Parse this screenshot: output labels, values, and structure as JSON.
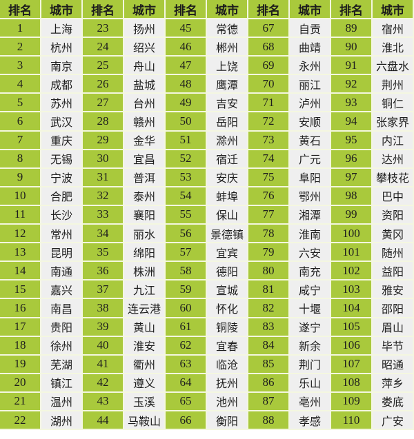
{
  "headers": {
    "rank": "排名",
    "city": "城市"
  },
  "colors": {
    "rank_bg": "#a9c93c",
    "city_bg": "#efefef"
  },
  "cities": [
    "上海",
    "杭州",
    "南京",
    "成都",
    "苏州",
    "武汉",
    "重庆",
    "无锡",
    "宁波",
    "合肥",
    "长沙",
    "常州",
    "昆明",
    "南通",
    "嘉兴",
    "南昌",
    "贵阳",
    "徐州",
    "芜湖",
    "镇江",
    "温州",
    "湖州",
    "扬州",
    "绍兴",
    "舟山",
    "盐城",
    "台州",
    "赣州",
    "金华",
    "宜昌",
    "普洱",
    "泰州",
    "襄阳",
    "丽水",
    "绵阳",
    "株洲",
    "九江",
    "连云港",
    "黄山",
    "淮安",
    "衢州",
    "遵义",
    "玉溪",
    "马鞍山",
    "常德",
    "郴州",
    "上饶",
    "鹰潭",
    "吉安",
    "岳阳",
    "滁州",
    "宿迁",
    "安庆",
    "蚌埠",
    "保山",
    "景德镇",
    "宜宾",
    "德阳",
    "宣城",
    "怀化",
    "铜陵",
    "宜春",
    "临沧",
    "抚州",
    "池州",
    "衡阳",
    "自贡",
    "曲靖",
    "永州",
    "丽江",
    "泸州",
    "安顺",
    "黄石",
    "广元",
    "阜阳",
    "鄂州",
    "湘潭",
    "淮南",
    "六安",
    "南充",
    "咸宁",
    "十堰",
    "遂宁",
    "新余",
    "荆门",
    "乐山",
    "亳州",
    "孝感",
    "宿州",
    "淮北",
    "六盘水",
    "荆州",
    "铜仁",
    "张家界",
    "内江",
    "达州",
    "攀枝花",
    "巴中",
    "资阳",
    "黄冈",
    "随州",
    "益阳",
    "雅安",
    "邵阳",
    "眉山",
    "毕节",
    "昭通",
    "萍乡",
    "娄底",
    "广安"
  ],
  "ranks": [
    1,
    2,
    3,
    4,
    5,
    6,
    7,
    8,
    9,
    10,
    11,
    12,
    13,
    14,
    15,
    16,
    17,
    18,
    19,
    20,
    21,
    22,
    23,
    24,
    25,
    26,
    27,
    28,
    29,
    30,
    31,
    32,
    33,
    34,
    35,
    36,
    37,
    38,
    39,
    40,
    41,
    42,
    43,
    44,
    45,
    46,
    47,
    48,
    49,
    50,
    51,
    52,
    53,
    54,
    55,
    56,
    57,
    58,
    59,
    60,
    61,
    62,
    63,
    64,
    65,
    66,
    67,
    68,
    69,
    70,
    71,
    72,
    73,
    74,
    75,
    76,
    77,
    78,
    79,
    80,
    81,
    82,
    83,
    84,
    85,
    86,
    87,
    88,
    89,
    90,
    91,
    92,
    93,
    94,
    95,
    96,
    97,
    98,
    99,
    100,
    101,
    102,
    103,
    104,
    105,
    106,
    107,
    108,
    109,
    110
  ]
}
